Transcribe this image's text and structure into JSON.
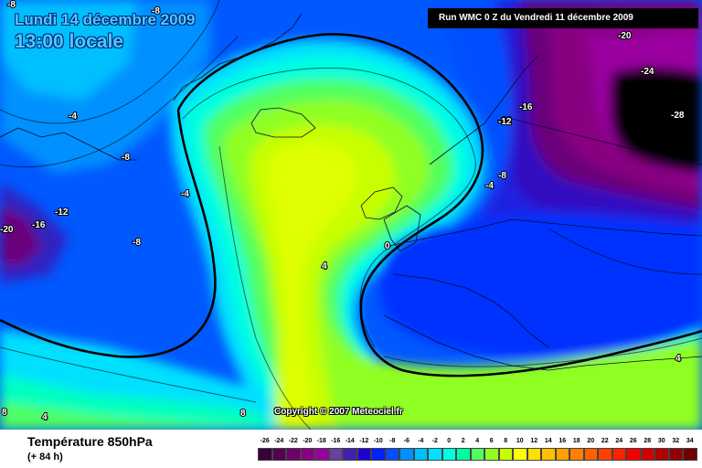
{
  "header": {
    "date_line1": "Lundi 14 décembre 2009",
    "date_line2": "13:00 locale",
    "run_info": "Run WMC 0 Z du Vendredi 11 décembre 2009",
    "copyright": "Copyright © 2007 Meteociel.fr"
  },
  "footer": {
    "parameter": "Température 850hPa",
    "lead_time": "(+ 84 h)"
  },
  "legend": {
    "values": [
      "-26",
      "-24",
      "-22",
      "-20",
      "-18",
      "-16",
      "-14",
      "-12",
      "-10",
      "-8",
      "-6",
      "-4",
      "-2",
      "0",
      "2",
      "4",
      "6",
      "8",
      "10",
      "12",
      "14",
      "16",
      "18",
      "20",
      "22",
      "24",
      "26",
      "28",
      "30",
      "32",
      "34"
    ],
    "colors": [
      "#3a0038",
      "#550050",
      "#6e0067",
      "#880080",
      "#9a00a0",
      "#6a40a0",
      "#4020b0",
      "#2000d0",
      "#0020ff",
      "#0050ff",
      "#0090ff",
      "#00bfff",
      "#00e0ff",
      "#00ffe0",
      "#00ffa0",
      "#50ff60",
      "#90ff20",
      "#c8ff00",
      "#ffff00",
      "#ffe000",
      "#ffc000",
      "#ffa000",
      "#ff8000",
      "#ff6000",
      "#ff4000",
      "#ff2000",
      "#f00000",
      "#d00000",
      "#b00000",
      "#900000",
      "#700000"
    ]
  },
  "contour_labels": [
    "-8",
    "-4",
    "-8",
    "-4",
    "-8",
    "-16",
    "-12",
    "-20",
    "-16",
    "-12",
    "-8",
    "-20",
    "-24",
    "-28",
    "-12",
    "-8",
    "-4",
    "0",
    "4",
    "4",
    "8",
    "4",
    "8"
  ]
}
